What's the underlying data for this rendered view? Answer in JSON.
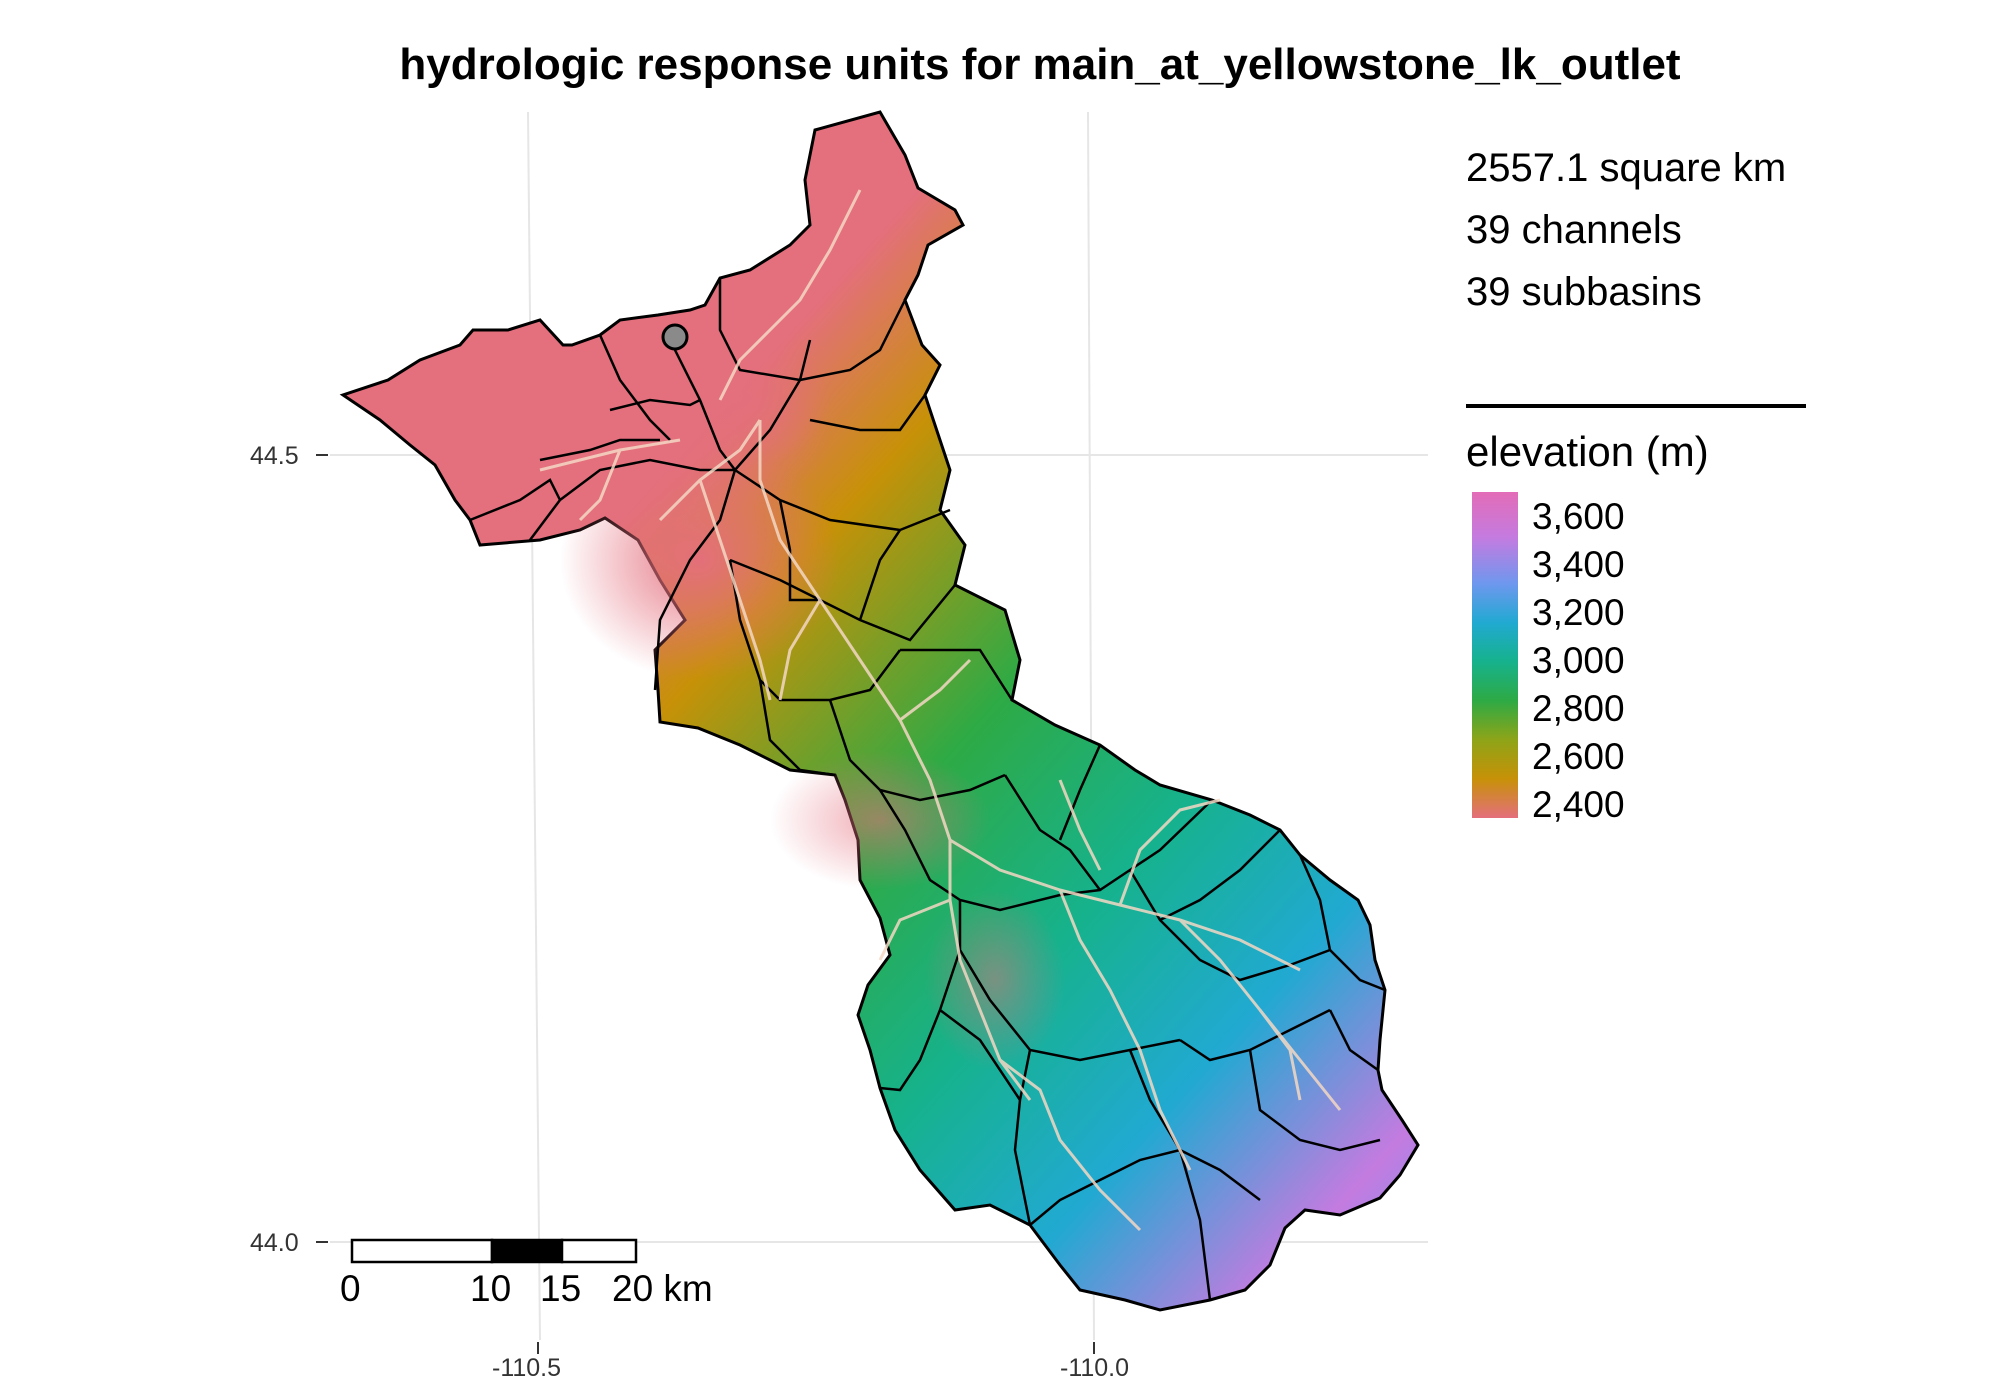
{
  "title": "hydrologic response units for main_at_yellowstone_lk_outlet",
  "stats": {
    "area": "2557.1 square km",
    "channels": "39 channels",
    "subbasins": "39 subbasins"
  },
  "legend": {
    "title": "elevation (m)",
    "ticks": [
      "3,600",
      "3,400",
      "3,200",
      "3,000",
      "2,800",
      "2,600",
      "2,400"
    ],
    "colors": [
      "#e36cb7",
      "#c47be0",
      "#6f97ee",
      "#21a9d2",
      "#16b28d",
      "#2eaa45",
      "#8ea418",
      "#c79107",
      "#e46f7d"
    ]
  },
  "axes": {
    "y_ticks": [
      "44.5",
      "44.0"
    ],
    "x_ticks": [
      "-110.5",
      "-110.0"
    ]
  },
  "scalebar": {
    "labels": [
      "0",
      "10",
      "15",
      "20 km"
    ]
  },
  "markers": {
    "outlet": "outlet-point"
  }
}
